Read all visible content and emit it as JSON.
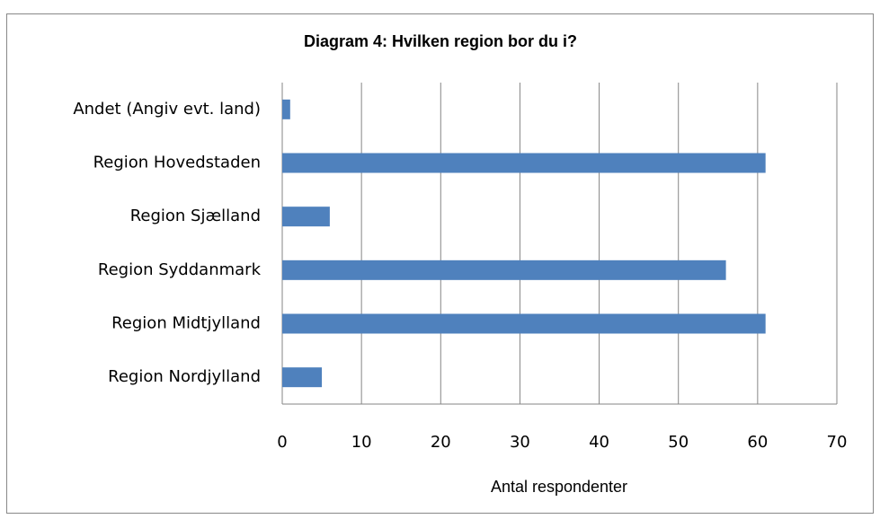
{
  "chart_data": {
    "type": "barh",
    "title": "Diagram 4: Hvilken region bor du i?",
    "categories": [
      "Andet (Angiv evt. land)",
      "Region Hovedstaden",
      "Region Sjælland",
      "Region Syddanmark",
      "Region Midtjylland",
      "Region Nordjylland"
    ],
    "values": [
      1,
      61,
      6,
      56,
      61,
      5
    ],
    "color": "#4f81bd",
    "xlabel": "Antal respondenter",
    "xlim": [
      0,
      70
    ],
    "xticks": [
      0,
      10,
      20,
      30,
      40,
      50,
      60,
      70
    ],
    "grid": true
  }
}
